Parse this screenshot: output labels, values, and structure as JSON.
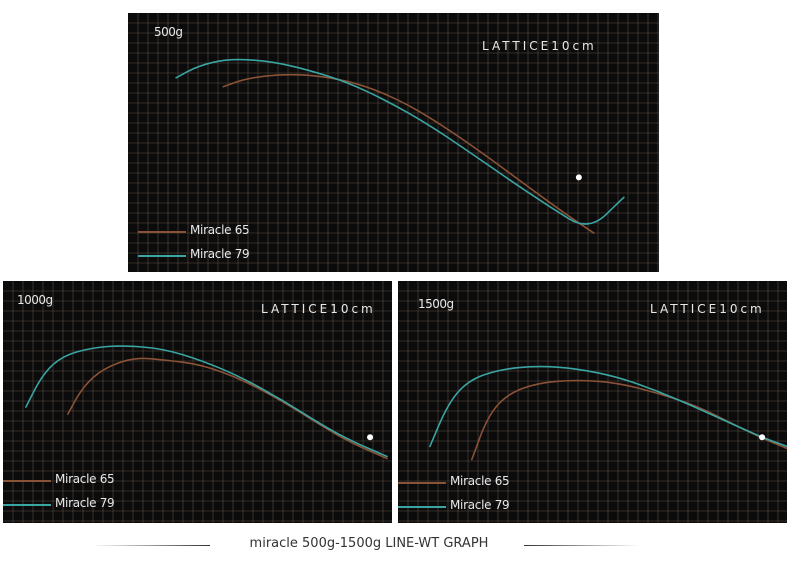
{
  "colors": {
    "background": "#0b0b0b",
    "grid": "#5a4d45",
    "miracle65": "#8a5236",
    "miracle79": "#3aa5a2",
    "marker": "#ffffff"
  },
  "footer": {
    "title": "miracle 500g-1500g  LINE-WT GRAPH"
  },
  "chart_data": [
    {
      "type": "line",
      "title": "500g",
      "annotation": "LATTICE10cm",
      "grid": true,
      "xlim": [
        0,
        53
      ],
      "ylim": [
        0,
        26
      ],
      "legend": "bottom-left",
      "series": [
        {
          "name": "Miracle 65",
          "color": "#8a5236",
          "points": [
            [
              9.5,
              18.6
            ],
            [
              12,
              19.5
            ],
            [
              16,
              19.9
            ],
            [
              20,
              19.6
            ],
            [
              24,
              18.6
            ],
            [
              28,
              16.8
            ],
            [
              32,
              14.3
            ],
            [
              36,
              11.5
            ],
            [
              40,
              8.5
            ],
            [
              44,
              5.6
            ],
            [
              46.5,
              3.9
            ]
          ]
        },
        {
          "name": "Miracle 79",
          "color": "#3aa5a2",
          "points": [
            [
              4.8,
              19.5
            ],
            [
              7,
              20.7
            ],
            [
              10,
              21.4
            ],
            [
              14,
              21.2
            ],
            [
              18,
              20.3
            ],
            [
              22,
              19.0
            ],
            [
              26,
              17.1
            ],
            [
              30,
              14.8
            ],
            [
              34,
              12.1
            ],
            [
              38,
              9.3
            ],
            [
              42,
              6.6
            ],
            [
              46,
              4.1
            ],
            [
              49.5,
              7.5
            ]
          ]
        }
      ],
      "marker": {
        "x": 45,
        "y": 9.5
      }
    },
    {
      "type": "line",
      "title": "1000g",
      "annotation": "LATTICE10cm",
      "grid": true,
      "xlim": [
        0,
        39
      ],
      "ylim": [
        0,
        24
      ],
      "legend": "bottom-left",
      "series": [
        {
          "name": "Miracle 65",
          "color": "#8a5236",
          "points": [
            [
              6.5,
              10.8
            ],
            [
              8,
              13.5
            ],
            [
              10,
              15.3
            ],
            [
              13,
              16.4
            ],
            [
              16,
              16.2
            ],
            [
              20,
              15.7
            ],
            [
              24,
              14.2
            ],
            [
              28,
              12.1
            ],
            [
              32,
              9.6
            ],
            [
              35,
              7.9
            ],
            [
              38.5,
              6.4
            ]
          ]
        },
        {
          "name": "Miracle 79",
          "color": "#3aa5a2",
          "points": [
            [
              2.3,
              11.5
            ],
            [
              4,
              14.8
            ],
            [
              6,
              16.6
            ],
            [
              9,
              17.4
            ],
            [
              12,
              17.6
            ],
            [
              16,
              17.3
            ],
            [
              20,
              16.1
            ],
            [
              24,
              14.4
            ],
            [
              28,
              12.2
            ],
            [
              32,
              9.7
            ],
            [
              35,
              8.1
            ],
            [
              38.5,
              6.6
            ]
          ]
        }
      ],
      "marker": {
        "x": 36.8,
        "y": 8.5
      }
    },
    {
      "type": "line",
      "title": "1500g",
      "annotation": "LATTICE10cm",
      "grid": true,
      "xlim": [
        0,
        39
      ],
      "ylim": [
        0,
        24
      ],
      "legend": "bottom-left",
      "series": [
        {
          "name": "Miracle 65",
          "color": "#8a5236",
          "points": [
            [
              7.4,
              6.3
            ],
            [
              9,
              10.6
            ],
            [
              11,
              12.8
            ],
            [
              14,
              13.9
            ],
            [
              18,
              14.2
            ],
            [
              22,
              13.9
            ],
            [
              26,
              12.9
            ],
            [
              30,
              11.6
            ],
            [
              34,
              9.6
            ],
            [
              37,
              8.2
            ],
            [
              39,
              7.4
            ]
          ]
        },
        {
          "name": "Miracle 79",
          "color": "#3aa5a2",
          "points": [
            [
              3.2,
              7.6
            ],
            [
              5,
              11.8
            ],
            [
              7,
              14.1
            ],
            [
              10,
              15.2
            ],
            [
              14,
              15.6
            ],
            [
              18,
              15.3
            ],
            [
              22,
              14.5
            ],
            [
              26,
              13.1
            ],
            [
              30,
              11.4
            ],
            [
              34,
              9.6
            ],
            [
              37,
              8.3
            ],
            [
              39,
              7.6
            ]
          ]
        }
      ],
      "marker": {
        "x": 36.5,
        "y": 8.5
      }
    }
  ]
}
